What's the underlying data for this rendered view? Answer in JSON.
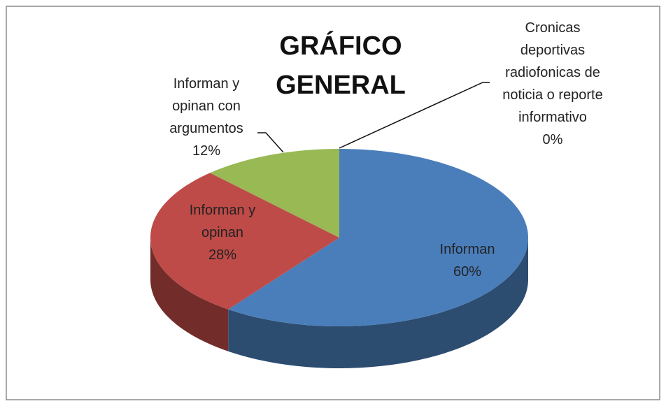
{
  "chart_data": {
    "type": "pie3d",
    "title": "GRÁFICO GENERAL",
    "categories": [
      "Informan",
      "Informan y opinan",
      "Informan y opinan con argumentos",
      "Cronicas deportivas radiofonicas de noticia o reporte informativo"
    ],
    "values": [
      60,
      28,
      12,
      0
    ],
    "value_labels": [
      "60%",
      "28%",
      "12%",
      "0%"
    ],
    "colors": [
      "#4a7ebb",
      "#be4b48",
      "#98b954",
      "#7d60a0"
    ]
  }
}
